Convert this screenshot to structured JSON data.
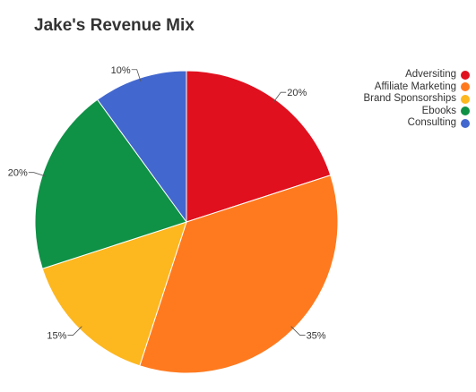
{
  "chart_data": {
    "type": "pie",
    "title": "Jake's Revenue Mix",
    "categories": [
      "Adversiting",
      "Affiliate Marketing",
      "Brand Sponsorships",
      "Ebooks",
      "Consulting"
    ],
    "values": [
      20,
      35,
      15,
      20,
      10
    ],
    "data_labels": [
      "20%",
      "35%",
      "15%",
      "20%",
      "10%"
    ],
    "colors": [
      "#e0101f",
      "#ff7a1f",
      "#fdb71f",
      "#0f9146",
      "#4267cf"
    ],
    "legend_position": "top-right"
  }
}
